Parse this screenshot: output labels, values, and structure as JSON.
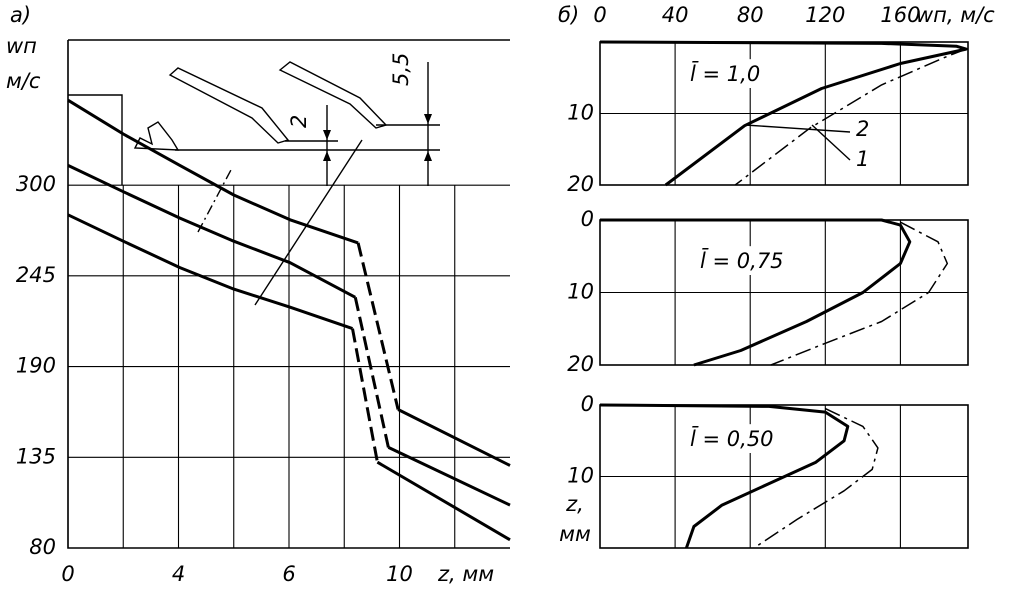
{
  "chart_data": [
    {
      "type": "line",
      "title": "а)",
      "y_label": "wп",
      "y_unit": "м/с",
      "x_label": "z, мм",
      "xlim": [
        0,
        16
      ],
      "xticks": [
        0,
        {
          "value": 4,
          "label": "4"
        },
        {
          "value": 8,
          "label": "6"
        },
        {
          "value": 12,
          "label": "10"
        }
      ],
      "ylim": [
        80,
        388
      ],
      "yticks": [
        80,
        135,
        190,
        245,
        300
      ],
      "grid": true,
      "annotations": [
        "2",
        "5,5"
      ],
      "series": [
        {
          "color": "#000000",
          "style": "solid",
          "x": [
            0,
            2,
            4.05,
            6,
            8.04,
            10.5
          ],
          "values": [
            351.5,
            331,
            312,
            294,
            279,
            265
          ]
        },
        {
          "color": "#000000",
          "style": "dashed",
          "x": [
            10.5,
            11.95
          ],
          "values": [
            265,
            164
          ]
        },
        {
          "color": "#000000",
          "style": "solid",
          "x": [
            11.95,
            16
          ],
          "values": [
            164,
            130
          ]
        },
        {
          "color": "#000000",
          "style": "solid",
          "x": [
            0,
            2,
            4.05,
            6,
            8.04,
            10.4
          ],
          "values": [
            312,
            296,
            280,
            266,
            253,
            232
          ]
        },
        {
          "color": "#000000",
          "style": "dashed",
          "x": [
            10.4,
            11.6
          ],
          "values": [
            232,
            141
          ]
        },
        {
          "color": "#000000",
          "style": "solid",
          "x": [
            11.6,
            16
          ],
          "values": [
            141,
            106
          ]
        },
        {
          "color": "#000000",
          "style": "solid",
          "x": [
            0,
            2,
            4.05,
            6,
            8.04,
            10.3
          ],
          "values": [
            282,
            266,
            250,
            237,
            226,
            213
          ]
        },
        {
          "color": "#000000",
          "style": "dashed",
          "x": [
            10.3,
            11.2
          ],
          "values": [
            213,
            132
          ]
        },
        {
          "color": "#000000",
          "style": "solid",
          "x": [
            11.2,
            16
          ],
          "values": [
            132,
            85
          ]
        }
      ]
    },
    {
      "type": "line",
      "title": "б)",
      "x_label": "wп, м/с",
      "xlim": [
        0,
        196
      ],
      "xticks": [
        0,
        40,
        80,
        120,
        160
      ],
      "ylim": [
        0,
        20
      ],
      "yticks": [
        10,
        20
      ],
      "yreverse": true,
      "grid": true,
      "annotations": [
        "l̄ = 1,0",
        "2",
        "1"
      ],
      "series": [
        {
          "color": "#000000",
          "style": "solid",
          "x": [
            0,
            150,
            190,
            195,
            160,
            118,
            77,
            35
          ],
          "values": [
            0,
            0.2,
            0.6,
            1,
            3,
            6.5,
            11.7,
            20
          ]
        },
        {
          "color": "#000000",
          "style": "dashdot",
          "x": [
            195,
            185,
            150,
            112,
            72
          ],
          "values": [
            1,
            2,
            6,
            12,
            20
          ]
        }
      ]
    },
    {
      "type": "line",
      "xlim": [
        0,
        196
      ],
      "ylim": [
        0,
        20
      ],
      "yticks": [
        0,
        10,
        20
      ],
      "yreverse": true,
      "grid": true,
      "annotations": [
        "l̄ = 0,75"
      ],
      "series": [
        {
          "color": "#000000",
          "style": "solid",
          "x": [
            0,
            150,
            160,
            165,
            160,
            140,
            110,
            75,
            50
          ],
          "values": [
            0,
            0,
            0.7,
            3,
            6,
            10,
            14,
            18,
            20
          ]
        },
        {
          "color": "#000000",
          "style": "dashdot",
          "x": [
            160,
            180,
            185,
            175,
            150,
            120,
            91
          ],
          "values": [
            0.3,
            3,
            6,
            10,
            14,
            17,
            20
          ]
        }
      ]
    },
    {
      "type": "line",
      "y_label": "z,",
      "y_unit": "мм",
      "xlim": [
        0,
        196
      ],
      "ylim": [
        0,
        20
      ],
      "yticks": [
        0,
        10
      ],
      "yreverse": true,
      "grid": true,
      "annotations": [
        "l̄ = 0,50"
      ],
      "series": [
        {
          "color": "#000000",
          "style": "solid",
          "x": [
            0,
            90,
            120,
            132,
            130,
            115,
            90,
            65,
            50,
            46
          ],
          "values": [
            0,
            0.2,
            1,
            3,
            5,
            8,
            11,
            14,
            17,
            20
          ]
        },
        {
          "color": "#000000",
          "style": "dashdot",
          "x": [
            120,
            140,
            148,
            145,
            130,
            105,
            82
          ],
          "values": [
            0.5,
            3,
            6,
            9,
            12,
            16,
            20
          ]
        }
      ]
    }
  ]
}
